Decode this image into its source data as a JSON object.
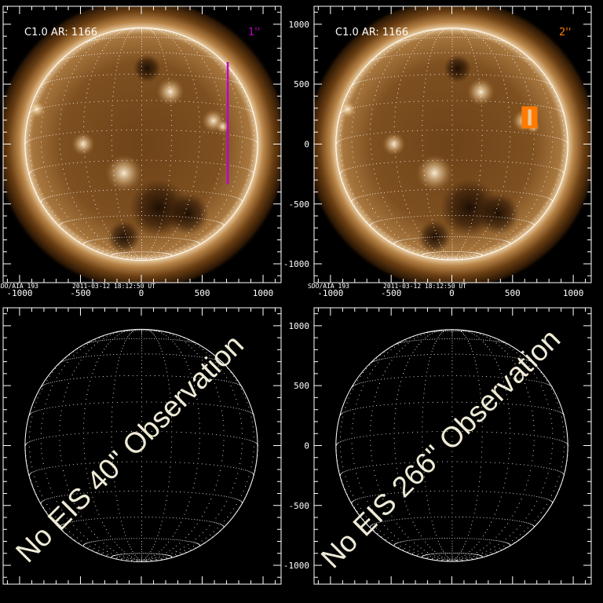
{
  "figure": {
    "axis": {
      "x_range": [
        -1135,
        1148
      ],
      "y_range": [
        -1157,
        1150
      ],
      "major_ticks": [
        -1000,
        -500,
        0,
        500,
        1000
      ],
      "minor_step": 100,
      "tick_labels": [
        "-1000",
        "-500",
        "0",
        "500",
        "1000"
      ]
    },
    "panels": [
      {
        "id": "top-left",
        "kind": "image",
        "flare_label": "C1.0 AR: 1166",
        "slit_label": "1''",
        "slit_color": "#c000c8",
        "footer_instrument": "SDO/AIA 193",
        "footer_time": "2011-03-12 18:12:50 UT",
        "overlay": {
          "type": "slit-line",
          "x_arcsec": 710,
          "y_from_arcsec": 685,
          "y_to_arcsec": -335
        }
      },
      {
        "id": "top-right",
        "kind": "image",
        "flare_label": "C1.0 AR: 1166",
        "slit_label": "2''",
        "slit_color": "#ff7a00",
        "footer_instrument": "SDO/AIA 193",
        "footer_time": "2011-03-12 18:12:50 UT",
        "overlay": {
          "type": "raster-box",
          "x_from_arcsec": 575,
          "x_to_arcsec": 705,
          "y_from_arcsec": 315,
          "y_to_arcsec": 130
        }
      },
      {
        "id": "bottom-left",
        "kind": "empty",
        "message": "No EIS 40\" Observation"
      },
      {
        "id": "bottom-right",
        "kind": "empty",
        "message": "No EIS 266\" Observation"
      }
    ]
  }
}
